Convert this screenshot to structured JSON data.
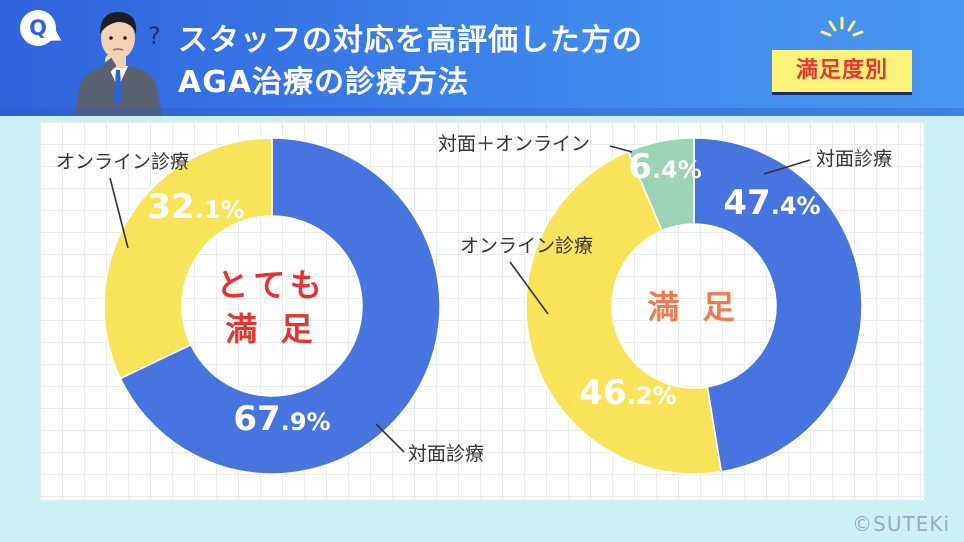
{
  "header": {
    "badge": "Q",
    "title_line1": "スタッフの対応を高評価した方の",
    "title_line2": "AGA治療の診療方法",
    "tag": "満足度別"
  },
  "colors": {
    "blue": "#4874e0",
    "yellow": "#f9e35a",
    "green": "#9dd3b5",
    "header": "#2f63dd",
    "red_label": "#e8322e",
    "orange_label": "#f37a4e"
  },
  "chart_data": [
    {
      "type": "pie",
      "center_label": [
        "とても",
        "満 足"
      ],
      "slices": [
        {
          "label": "対面診療",
          "value": 67.9,
          "display": "67.9%",
          "color": "#4874e0"
        },
        {
          "label": "オンライン診療",
          "value": 32.1,
          "display": "32.1%",
          "color": "#f9e35a"
        }
      ]
    },
    {
      "type": "pie",
      "center_label": [
        "満 足"
      ],
      "slices": [
        {
          "label": "対面診療",
          "value": 47.4,
          "display": "47.4%",
          "color": "#4874e0"
        },
        {
          "label": "オンライン診療",
          "value": 46.2,
          "display": "46.2%",
          "color": "#f9e35a"
        },
        {
          "label": "対面＋オンライン",
          "value": 6.4,
          "display": "6.4%",
          "color": "#9dd3b5"
        }
      ]
    }
  ],
  "footer": {
    "copyright": "©SUTEKi"
  }
}
